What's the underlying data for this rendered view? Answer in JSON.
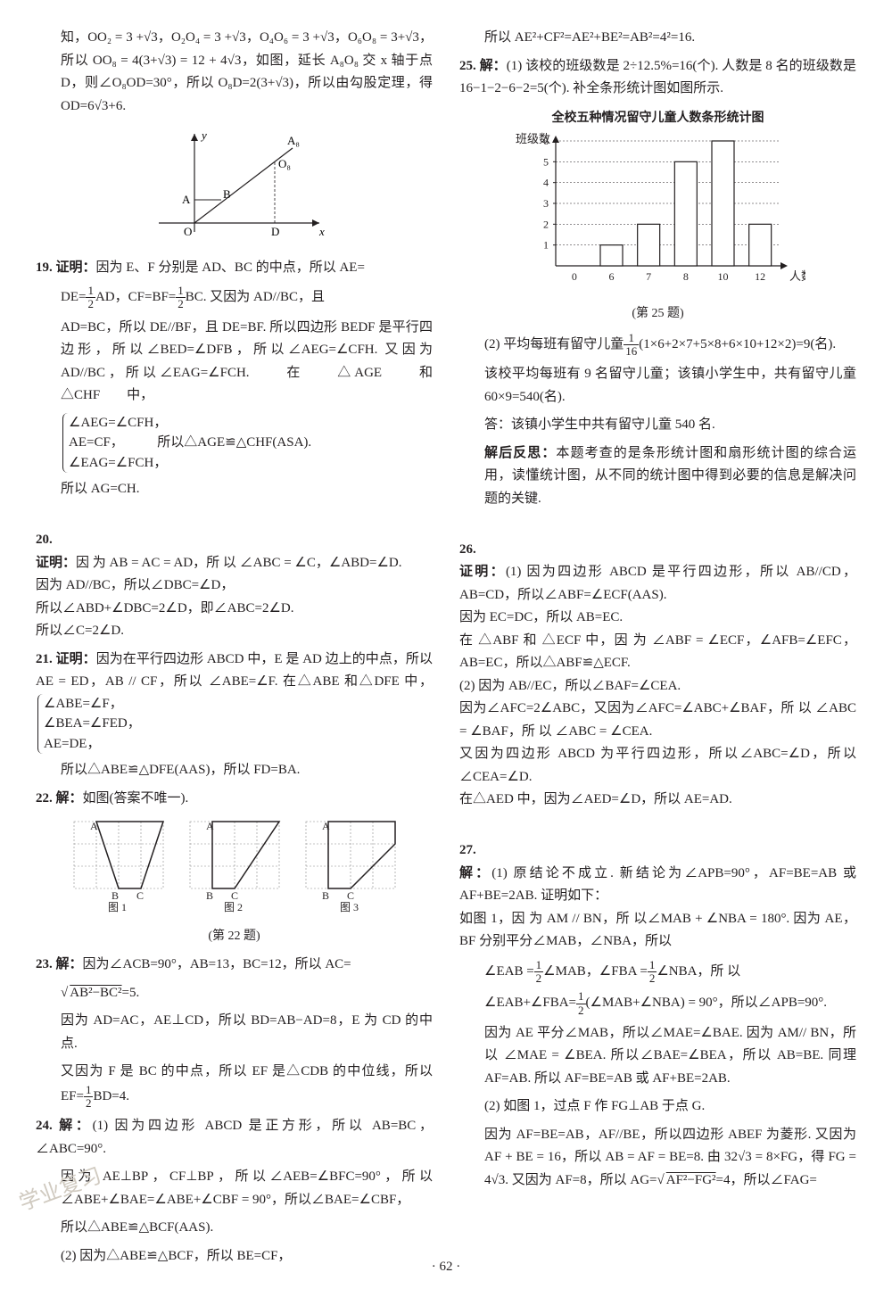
{
  "page_number": "· 62 ·",
  "watermark": "学业复习",
  "left": {
    "intro": "知，OO₂ = 3 +√3，O₂O₄ = 3 +√3，O₄O₆ = 3 +√3，O₆O₈ = 3+√3，所以 OO₈ = 4(3+√3) = 12 + 4√3，如图，延长 A₈O₈ 交 x 轴于点 D，则∠O₈OD=30°，所以 O₈D=2(3+√3)，所以由勾股定理，得 OD=6√3+6.",
    "graph1": {
      "axis_labels": {
        "x": "x",
        "y": "y"
      },
      "points": [
        "A",
        "B",
        "O",
        "D",
        "A₈",
        "O₈"
      ]
    },
    "q19": {
      "num": "19.",
      "label": "证明：",
      "text1": "因为 E、F 分别是 AD、BC 的中点，所以 AE=",
      "text2": "DE=",
      "frac1n": "1",
      "frac1d": "2",
      "text3": "AD，CF=BF=",
      "frac2n": "1",
      "frac2d": "2",
      "text4": "BC. 又因为 AD//BC，且",
      "text5": "AD=BC，所以 DE//BF，且 DE=BF. 所以四边形 BEDF 是平行四边形，所以∠BED=∠DFB，所以∠AEG=∠CFH. 又因为 AD//BC，所以∠EAG=∠FCH.　　在　　△AGE　　和　　△CHF　　中，",
      "brace": [
        "∠AEG=∠CFH，",
        "AE=CF，　　　所以△AGE≌△CHF(ASA).",
        "∠EAG=∠FCH，"
      ],
      "text6": "所以 AG=CH."
    },
    "q20": {
      "num": "20.",
      "label": "证明：",
      "text": "因 为 AB = AC = AD，所 以 ∠ABC = ∠C，∠ABD=∠D.\n因为 AD//BC，所以∠DBC=∠D，\n所以∠ABD+∠DBC=2∠D，即∠ABC=2∠D.\n所以∠C=2∠D."
    },
    "q21": {
      "num": "21.",
      "label": "证明：",
      "text1": "因为在平行四边形 ABCD 中，E 是 AD 边上的中点，所以 AE = ED，AB // CF，所以 ∠ABE=∠F. 在△ABE 和△DFE 中，",
      "brace": [
        "∠ABE=∠F，",
        "∠BEA=∠FED，",
        "AE=DE，"
      ],
      "text2": "所以△ABE≌△DFE(AAS)，所以 FD=BA."
    },
    "q22": {
      "num": "22.",
      "label": "解：",
      "text": "如图(答案不唯一).",
      "fig_labels": [
        "图 1",
        "图 2",
        "图 3"
      ],
      "fig_caption": "(第 22 题)",
      "grid_points": [
        "A",
        "B",
        "C"
      ]
    },
    "q23": {
      "num": "23.",
      "label": "解：",
      "text1": "因为∠ACB=90°，AB=13，BC=12，所以 AC=",
      "sqrt": "AB²−BC²",
      "text2": "=5.",
      "text3": "因为 AD=AC，AE⊥CD，所以 BD=AB−AD=8，E 为 CD 的中点.",
      "text4": "又因为 F 是 BC 的中点，所以 EF 是△CDB 的中位线，所以 EF=",
      "fracn": "1",
      "fracd": "2",
      "text5": "BD=4."
    },
    "q24": {
      "num": "24.",
      "label": "解：",
      "text1": "(1) 因为四边形 ABCD 是正方形，所以 AB=BC，∠ABC=90°.",
      "text2": "因为 AE⊥BP，CF⊥BP，所以∠AEB=∠BFC=90°，所以∠ABE+∠BAE=∠ABE+∠CBF = 90°，所以∠BAE=∠CBF，",
      "text3": "所以△ABE≌△BCF(AAS).",
      "text4": "(2) 因为△ABE≌△BCF，所以 BE=CF，"
    }
  },
  "right": {
    "intro": "所以 AE²+CF²=AE²+BE²=AB²=4²=16.",
    "q25": {
      "num": "25.",
      "label": "解：",
      "text1": "(1) 该校的班级数是 2÷12.5%=16(个). 人数是 8 名的班级数是 16−1−2−6−2=5(个). 补全条形统计图如图所示.",
      "chart": {
        "title": "全校五种情况留守儿童人数条形统计图",
        "ylabel": "班级数",
        "xlabel": "人数",
        "categories": [
          "0",
          "6",
          "7",
          "8",
          "10",
          "12"
        ],
        "values": [
          0,
          1,
          2,
          5,
          6,
          2
        ],
        "ylim": [
          0,
          6
        ],
        "ytick_step": 1,
        "bar_color": "#ffffff",
        "border_color": "#231f20",
        "grid_color": "#231f20"
      },
      "caption": "(第 25 题)",
      "text2": "(2) 平均每班有留守儿童",
      "fracn": "1",
      "fracd": "16",
      "text3": "(1×6+2×7+5×8+6×10+12×2)=9(名).",
      "text4": "该校平均每班有 9 名留守儿童；该镇小学生中，共有留守儿童 60×9=540(名).",
      "text5": "答：该镇小学生中共有留守儿童 540 名.",
      "note_label": "解后反思：",
      "note": "本题考查的是条形统计图和扇形统计图的综合运用，读懂统计图，从不同的统计图中得到必要的信息是解决问题的关键."
    },
    "q26": {
      "num": "26.",
      "label": "证明：",
      "text": "(1) 因为四边形 ABCD 是平行四边形，所以 AB//CD，AB=CD，所以∠ABF=∠ECF(AAS).\n因为 EC=DC，所以 AB=EC.\n在 △ABF 和 △ECF 中，因 为 ∠ABF = ∠ECF，∠AFB=∠EFC，AB=EC，所以△ABF≌△ECF.\n(2) 因为 AB//EC，所以∠BAF=∠CEA.\n因为∠AFC=2∠ABC，又因为∠AFC=∠ABC+∠BAF，所 以 ∠ABC = ∠BAF，所 以 ∠ABC = ∠CEA.\n又因为四边形 ABCD 为平行四边形，所以∠ABC=∠D，所以∠CEA=∠D.\n在△AED 中，因为∠AED=∠D，所以 AE=AD."
    },
    "q27": {
      "num": "27.",
      "label": "解：",
      "text1": "(1) 原结论不成立. 新结论为∠APB=90°，AF=BE=AB 或 AF+BE=2AB. 证明如下：\n如图 1，因 为 AM // BN，所 以∠MAB + ∠NBA = 180°. 因为 AE，BF 分别平分∠MAB，∠NBA，所以",
      "text2": "∠EAB =",
      "f1n": "1",
      "f1d": "2",
      "text3": "∠MAB，∠FBA =",
      "f2n": "1",
      "f2d": "2",
      "text4": "∠NBA，所 以",
      "text5": "∠EAB+∠FBA=",
      "f3n": "1",
      "f3d": "2",
      "text6": "(∠MAB+∠NBA) = 90°，所以∠APB=90°.",
      "text7": "因为 AE 平分∠MAB，所以∠MAE=∠BAE. 因为 AM// BN，所 以 ∠MAE = ∠BEA. 所以∠BAE=∠BEA，所以 AB=BE. 同理 AF=AB. 所以 AF=BE=AB 或 AF+BE=2AB.",
      "text8": "(2) 如图 1，过点 F 作 FG⊥AB 于点 G.",
      "text9": "因为 AF=BE=AB，AF//BE，所以四边形 ABEF 为菱形. 又因为 AF + BE = 16，所以 AB = AF = BE=8. 由 32√3 = 8×FG，得 FG = 4√3. 又因为 AF=8，所以 AG=",
      "sqrt": "AF²−FG²",
      "text10": "=4，所以∠FAG="
    }
  }
}
